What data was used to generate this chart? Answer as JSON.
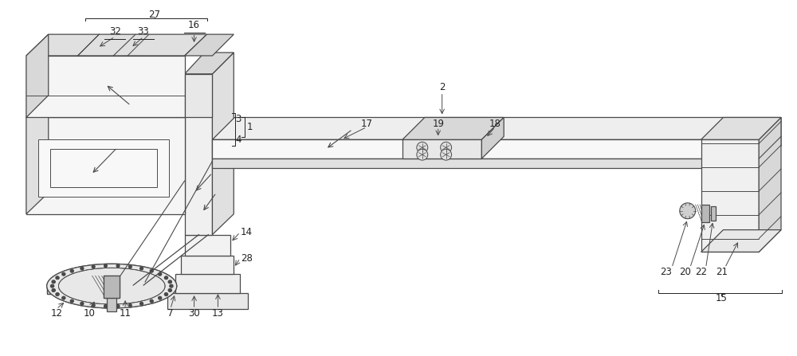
{
  "bg_color": "#ffffff",
  "lc": "#4a4a4a",
  "fc_light": "#f5f5f5",
  "fc_mid": "#e8e8e8",
  "fc_dark": "#d8d8d8",
  "fc_white": "#ffffff",
  "fig_width": 10.0,
  "fig_height": 4.47,
  "dpi": 100
}
